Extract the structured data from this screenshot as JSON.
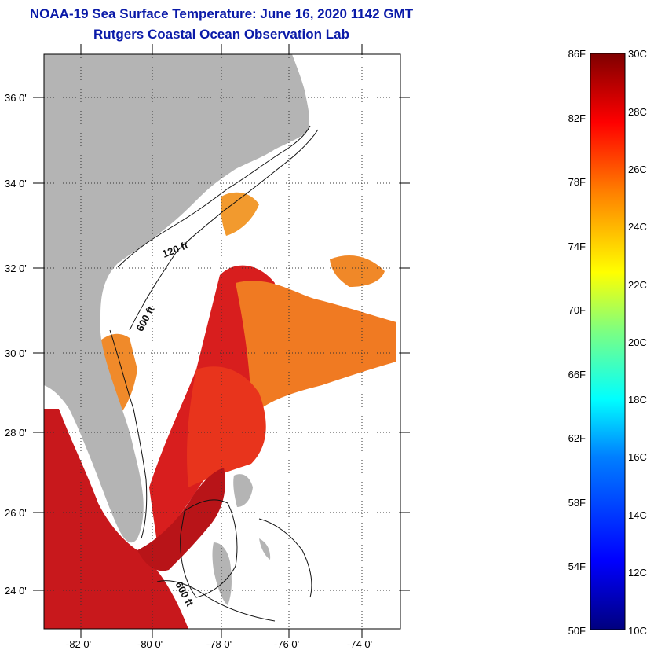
{
  "title": {
    "line1": "NOAA-19 Sea Surface Temperature:  June 16, 2020 1142 GMT",
    "line2": "Rutgers Coastal Ocean Observation Lab"
  },
  "axes": {
    "latitude_labels": [
      "36 0'",
      "34 0'",
      "32 0'",
      "30 0'",
      "28 0'",
      "26 0'",
      "24 0'"
    ],
    "longitude_labels": [
      "-82 0'",
      "-80 0'",
      "-78 0'",
      "-76 0'",
      "-74 0'"
    ]
  },
  "contours": {
    "label_120": "120 ft",
    "label_600a": "600 ft",
    "label_600b": "600 ft"
  },
  "colorbar": {
    "fahrenheit_labels": [
      "86F",
      "82F",
      "78F",
      "74F",
      "70F",
      "66F",
      "62F",
      "58F",
      "54F",
      "50F"
    ],
    "celsius_labels": [
      "30C",
      "28C",
      "26C",
      "24C",
      "22C",
      "20C",
      "18C",
      "16C",
      "14C",
      "12C",
      "10C"
    ],
    "colors": [
      "#00007f",
      "#0000ff",
      "#007fff",
      "#00ffff",
      "#7fff7f",
      "#ffff00",
      "#ff7f00",
      "#ff0000",
      "#7f0000"
    ]
  },
  "colors": {
    "title": "#0a1aa8",
    "land": "#b4b4b4",
    "warm_water": "#e02020",
    "orange_water": "#f07820"
  }
}
